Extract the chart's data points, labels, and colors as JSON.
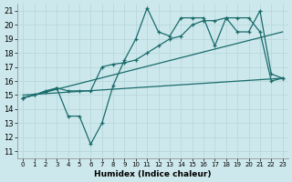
{
  "xlabel": "Humidex (Indice chaleur)",
  "ylabel": "",
  "bg_color": "#cde8ec",
  "grid_color": "#b8d8dc",
  "line_color": "#1a6b6b",
  "xlim": [
    -0.5,
    23.5
  ],
  "ylim": [
    10.5,
    21.5
  ],
  "yticks": [
    11,
    12,
    13,
    14,
    15,
    16,
    17,
    18,
    19,
    20,
    21
  ],
  "xticks": [
    0,
    1,
    2,
    3,
    4,
    5,
    6,
    7,
    8,
    9,
    10,
    11,
    12,
    13,
    14,
    15,
    16,
    17,
    18,
    19,
    20,
    21,
    22,
    23
  ],
  "line1_x": [
    0,
    1,
    2,
    3,
    4,
    5,
    6,
    7,
    8,
    9,
    10,
    11,
    12,
    13,
    14,
    15,
    16,
    17,
    18,
    19,
    20,
    21,
    22,
    23
  ],
  "line1_y": [
    14.8,
    15.0,
    15.2,
    15.5,
    13.5,
    13.5,
    11.5,
    13.0,
    15.7,
    17.5,
    19.0,
    21.2,
    19.5,
    19.2,
    20.5,
    20.5,
    20.5,
    18.5,
    20.5,
    19.5,
    19.5,
    21.0,
    16.5,
    16.2
  ],
  "line2_x": [
    0,
    1,
    2,
    3,
    4,
    5,
    6,
    7,
    8,
    9,
    10,
    11,
    12,
    13,
    14,
    15,
    16,
    17,
    18,
    19,
    20,
    21,
    22,
    23
  ],
  "line2_y": [
    14.8,
    15.0,
    15.3,
    15.5,
    15.3,
    15.3,
    15.3,
    17.0,
    17.2,
    17.3,
    17.5,
    18.0,
    18.5,
    19.0,
    19.2,
    20.0,
    20.3,
    20.3,
    20.5,
    20.5,
    20.5,
    19.5,
    16.0,
    16.2
  ],
  "line3_x": [
    0,
    23
  ],
  "line3_y": [
    15.0,
    16.2
  ],
  "line4_x": [
    0,
    23
  ],
  "line4_y": [
    14.8,
    19.5
  ]
}
